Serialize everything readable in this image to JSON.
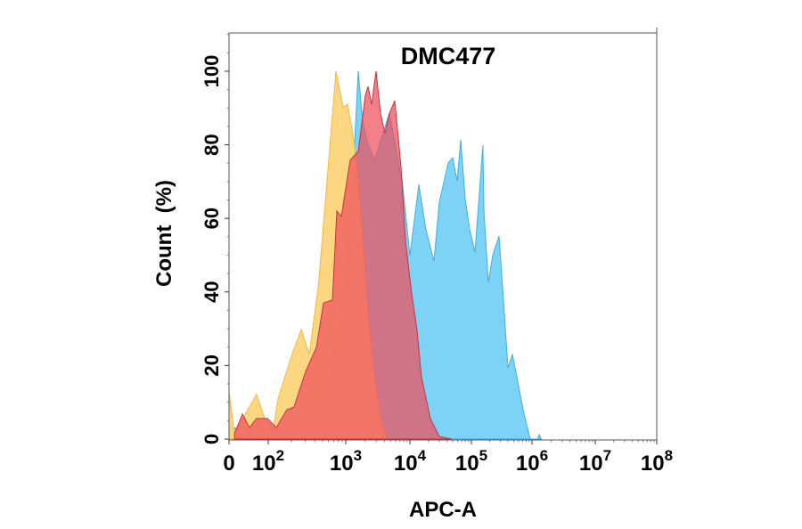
{
  "chart_data": {
    "type": "area",
    "title": "DMC477",
    "xlabel": "APC-A",
    "ylabel": "Count  (%)",
    "x_scale": "biexponential",
    "xlim": [
      0,
      100000000
    ],
    "ylim": [
      0,
      110
    ],
    "grid": false,
    "legend": "none",
    "x_ticks": [
      {
        "value": 0,
        "label": "0",
        "exp": ""
      },
      {
        "value": 100,
        "label": "10",
        "exp": "2"
      },
      {
        "value": 1000,
        "label": "10",
        "exp": "3"
      },
      {
        "value": 10000,
        "label": "10",
        "exp": "4"
      },
      {
        "value": 100000,
        "label": "10",
        "exp": "5"
      },
      {
        "value": 1000000,
        "label": "10",
        "exp": "6"
      },
      {
        "value": 10000000,
        "label": "10",
        "exp": "7"
      },
      {
        "value": 100000000,
        "label": "10",
        "exp": "8"
      }
    ],
    "y_ticks": [
      0,
      20,
      40,
      60,
      80,
      100
    ],
    "series": [
      {
        "color": "#7DD3F5",
        "stroke": "#3FB0DE",
        "opacity": 1,
        "points": [
          [
            0,
            3.1
          ],
          [
            64,
            2.7
          ],
          [
            215,
            3.1
          ],
          [
            621,
            15.3
          ],
          [
            1066,
            46.7
          ],
          [
            1334,
            75.8
          ],
          [
            1563,
            100
          ],
          [
            1837,
            86.2
          ],
          [
            2130,
            81.4
          ],
          [
            2780,
            75.8
          ],
          [
            4800,
            88.6
          ],
          [
            7260,
            71.7
          ],
          [
            7500,
            70.9
          ],
          [
            10000,
            49.9
          ],
          [
            13960,
            69.2
          ],
          [
            18200,
            57.1
          ],
          [
            24600,
            48.4
          ],
          [
            30100,
            64.4
          ],
          [
            42000,
            75.1
          ],
          [
            49600,
            76.5
          ],
          [
            58600,
            70.2
          ],
          [
            67000,
            81.4
          ],
          [
            79300,
            65.4
          ],
          [
            93500,
            57.1
          ],
          [
            114500,
            50.8
          ],
          [
            155000,
            79.9
          ],
          [
            161000,
            62
          ],
          [
            190000,
            42.6
          ],
          [
            225000,
            49.9
          ],
          [
            286000,
            55.2
          ],
          [
            338000,
            37.8
          ],
          [
            401000,
            19.4
          ],
          [
            475000,
            23
          ],
          [
            562000,
            17
          ],
          [
            713000,
            8
          ],
          [
            935000,
            0
          ],
          [
            1220000,
            0
          ],
          [
            1300000,
            1.2
          ],
          [
            1400000,
            0
          ]
        ]
      },
      {
        "color": "#FDD47A",
        "stroke": "#F2B93F",
        "opacity": 0.95,
        "points": [
          [
            0,
            12.8
          ],
          [
            14,
            1.5
          ],
          [
            36,
            5.6
          ],
          [
            70,
            12.1
          ],
          [
            91,
            5.6
          ],
          [
            117,
            3.1
          ],
          [
            134,
            11.1
          ],
          [
            199,
            22.5
          ],
          [
            266,
            29.8
          ],
          [
            338,
            23.2
          ],
          [
            441,
            41.2
          ],
          [
            574,
            70.2
          ],
          [
            748,
            100
          ],
          [
            924,
            90.3
          ],
          [
            1066,
            91
          ],
          [
            1334,
            81.4
          ],
          [
            1563,
            70.2
          ],
          [
            1837,
            54
          ],
          [
            2223,
            33.9
          ],
          [
            2780,
            17.7
          ],
          [
            3480,
            5.6
          ],
          [
            4350,
            0
          ]
        ]
      },
      {
        "color": "#EE4F5C",
        "stroke": "#C8323F",
        "opacity": 0.72,
        "points": [
          [
            14,
            1.5
          ],
          [
            34,
            6.8
          ],
          [
            52,
            3.1
          ],
          [
            70,
            5.6
          ],
          [
            98,
            5.6
          ],
          [
            127,
            3.1
          ],
          [
            174,
            8
          ],
          [
            215,
            8.7
          ],
          [
            304,
            18.4
          ],
          [
            418,
            24.9
          ],
          [
            516,
            37
          ],
          [
            673,
            37.8
          ],
          [
            768,
            62
          ],
          [
            877,
            60.5
          ],
          [
            1174,
            75.8
          ],
          [
            1563,
            78.2
          ],
          [
            2021,
            93.5
          ],
          [
            2223,
            95.9
          ],
          [
            2528,
            91
          ],
          [
            2966,
            100
          ],
          [
            3480,
            88.6
          ],
          [
            4080,
            83
          ],
          [
            4800,
            88.6
          ],
          [
            5800,
            92
          ],
          [
            7260,
            74
          ],
          [
            8530,
            54
          ],
          [
            10700,
            39.5
          ],
          [
            13000,
            29.8
          ],
          [
            15400,
            17
          ],
          [
            21500,
            5.6
          ],
          [
            30100,
            0.7
          ],
          [
            48000,
            0
          ]
        ]
      }
    ]
  }
}
